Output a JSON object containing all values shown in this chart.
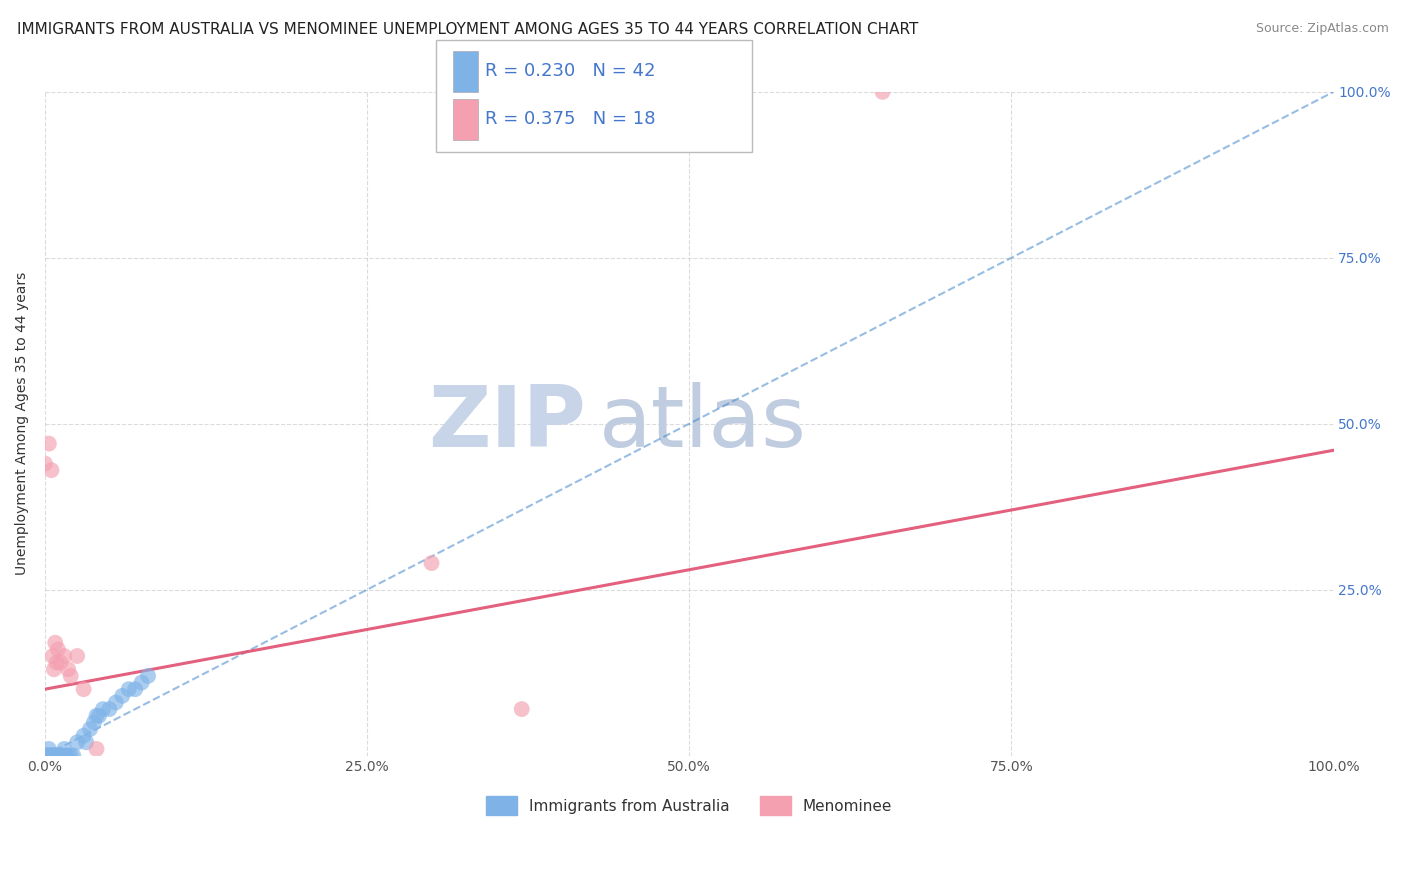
{
  "title": "IMMIGRANTS FROM AUSTRALIA VS MENOMINEE UNEMPLOYMENT AMONG AGES 35 TO 44 YEARS CORRELATION CHART",
  "source": "Source: ZipAtlas.com",
  "ylabel": "Unemployment Among Ages 35 to 44 years",
  "xlim": [
    0,
    1.0
  ],
  "ylim": [
    0,
    1.0
  ],
  "xtick_labels": [
    "0.0%",
    "25.0%",
    "50.0%",
    "75.0%",
    "100.0%"
  ],
  "xtick_values": [
    0.0,
    0.25,
    0.5,
    0.75,
    1.0
  ],
  "ytick_values": [
    0.0,
    0.25,
    0.5,
    0.75,
    1.0
  ],
  "right_ytick_labels": [
    "",
    "25.0%",
    "50.0%",
    "75.0%",
    "100.0%"
  ],
  "legend_r1": "R = 0.230",
  "legend_n1": "N = 42",
  "legend_r2": "R = 0.375",
  "legend_n2": "N = 18",
  "scatter_blue": [
    [
      0.0,
      0.0
    ],
    [
      0.001,
      0.0
    ],
    [
      0.002,
      0.0
    ],
    [
      0.002,
      0.0
    ],
    [
      0.003,
      0.0
    ],
    [
      0.003,
      0.01
    ],
    [
      0.004,
      0.0
    ],
    [
      0.004,
      0.0
    ],
    [
      0.005,
      0.0
    ],
    [
      0.005,
      0.0
    ],
    [
      0.006,
      0.0
    ],
    [
      0.006,
      0.0
    ],
    [
      0.007,
      0.0
    ],
    [
      0.007,
      0.0
    ],
    [
      0.008,
      0.0
    ],
    [
      0.008,
      0.0
    ],
    [
      0.009,
      0.0
    ],
    [
      0.01,
      0.0
    ],
    [
      0.01,
      0.0
    ],
    [
      0.012,
      0.0
    ],
    [
      0.013,
      0.0
    ],
    [
      0.015,
      0.0
    ],
    [
      0.015,
      0.01
    ],
    [
      0.016,
      0.0
    ],
    [
      0.018,
      0.0
    ],
    [
      0.02,
      0.0
    ],
    [
      0.022,
      0.0
    ],
    [
      0.025,
      0.02
    ],
    [
      0.03,
      0.03
    ],
    [
      0.032,
      0.02
    ],
    [
      0.035,
      0.04
    ],
    [
      0.038,
      0.05
    ],
    [
      0.04,
      0.06
    ],
    [
      0.042,
      0.06
    ],
    [
      0.045,
      0.07
    ],
    [
      0.05,
      0.07
    ],
    [
      0.055,
      0.08
    ],
    [
      0.06,
      0.09
    ],
    [
      0.065,
      0.1
    ],
    [
      0.07,
      0.1
    ],
    [
      0.075,
      0.11
    ],
    [
      0.08,
      0.12
    ]
  ],
  "scatter_pink": [
    [
      0.0,
      0.44
    ],
    [
      0.003,
      0.47
    ],
    [
      0.005,
      0.43
    ],
    [
      0.006,
      0.15
    ],
    [
      0.007,
      0.13
    ],
    [
      0.008,
      0.17
    ],
    [
      0.009,
      0.14
    ],
    [
      0.01,
      0.16
    ],
    [
      0.012,
      0.14
    ],
    [
      0.015,
      0.15
    ],
    [
      0.018,
      0.13
    ],
    [
      0.02,
      0.12
    ],
    [
      0.025,
      0.15
    ],
    [
      0.03,
      0.1
    ],
    [
      0.04,
      0.01
    ],
    [
      0.3,
      0.29
    ],
    [
      0.37,
      0.07
    ],
    [
      0.65,
      1.0
    ]
  ],
  "trendline_blue": [
    [
      0.0,
      0.0
    ],
    [
      1.0,
      1.0
    ]
  ],
  "trendline_pink": [
    [
      0.0,
      0.1
    ],
    [
      1.0,
      0.46
    ]
  ],
  "blue_color": "#7fb3e8",
  "pink_color": "#f4a0b0",
  "trendline_blue_color": "#4488cc",
  "trendline_pink_color": "#e05070",
  "grid_color": "#cccccc",
  "watermark_zip_color": "#c8d4e8",
  "watermark_atlas_color": "#c0cce0",
  "background_color": "#ffffff",
  "legend_text_color": "#4477cc",
  "title_fontsize": 11,
  "label_fontsize": 10,
  "tick_fontsize": 10,
  "legend_fontsize": 13
}
